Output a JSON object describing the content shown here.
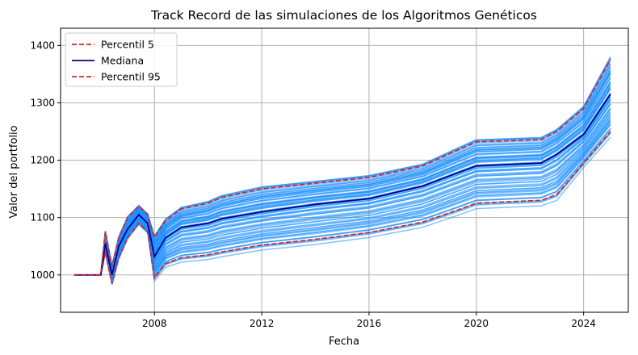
{
  "chart_data": {
    "type": "line",
    "title": "Track Record de las simulaciones de los Algoritmos Genéticos",
    "xlabel": "Fecha",
    "ylabel": "Valor del portfolio",
    "xlim": [
      "2004-07",
      "2025-09"
    ],
    "ylim": [
      935,
      1430
    ],
    "x_ticks": [
      {
        "value": "2008-01",
        "label": "2008"
      },
      {
        "value": "2012-01",
        "label": "2012"
      },
      {
        "value": "2016-01",
        "label": "2016"
      },
      {
        "value": "2020-01",
        "label": "2020"
      },
      {
        "value": "2024-01",
        "label": "2024"
      }
    ],
    "y_ticks": [
      1000,
      1100,
      1200,
      1300,
      1400
    ],
    "grid": true,
    "legend_position": "top-left",
    "legend": [
      {
        "label": "Percentil 5",
        "color": "#d62728",
        "style": "dashed"
      },
      {
        "label": "Mediana",
        "color": "#00008b",
        "style": "solid"
      },
      {
        "label": "Percentil 95",
        "color": "#d62728",
        "style": "dashed"
      }
    ],
    "simulation_color": "#1e90ff",
    "simulation_count": 70,
    "x": [
      "2005-01",
      "2006-01",
      "2006-03",
      "2006-06",
      "2006-09",
      "2007-01",
      "2007-06",
      "2007-10",
      "2008-01",
      "2008-06",
      "2009-01",
      "2010-01",
      "2010-07",
      "2012-01",
      "2014-01",
      "2016-01",
      "2018-01",
      "2019-06",
      "2020-01",
      "2022-06",
      "2023-01",
      "2024-01",
      "2025-01"
    ],
    "series": [
      {
        "name": "Percentil 5",
        "color": "#d62728",
        "style": "dashed",
        "values": [
          1000,
          1000,
          1040,
          985,
          1030,
          1065,
          1090,
          1075,
          995,
          1020,
          1030,
          1035,
          1040,
          1052,
          1062,
          1074,
          1092,
          1115,
          1125,
          1130,
          1140,
          1195,
          1250
        ]
      },
      {
        "name": "Mediana",
        "color": "#00008b",
        "style": "solid",
        "values": [
          1000,
          1000,
          1055,
          1000,
          1050,
          1080,
          1105,
          1090,
          1032,
          1065,
          1083,
          1090,
          1098,
          1110,
          1123,
          1133,
          1155,
          1180,
          1190,
          1195,
          1210,
          1245,
          1315
        ]
      },
      {
        "name": "Percentil 95",
        "color": "#d62728",
        "style": "dashed",
        "values": [
          1000,
          1000,
          1075,
          1015,
          1065,
          1100,
          1120,
          1105,
          1065,
          1095,
          1115,
          1125,
          1135,
          1150,
          1160,
          1170,
          1190,
          1220,
          1232,
          1236,
          1250,
          1290,
          1375
        ]
      }
    ]
  }
}
